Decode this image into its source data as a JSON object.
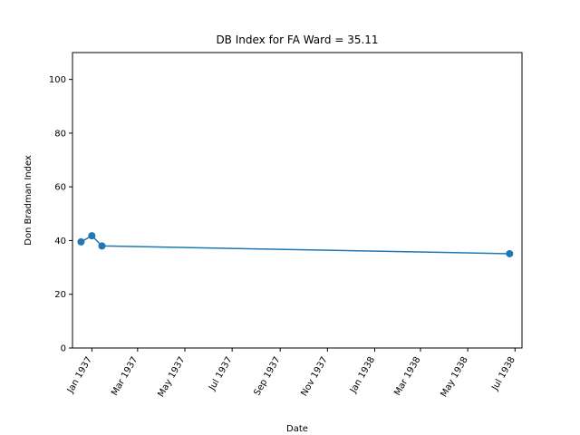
{
  "chart_data": {
    "type": "line",
    "title": "DB Index for FA Ward = 35.11",
    "xlabel": "Date",
    "ylabel": "Don Bradman Index",
    "ylim": [
      0,
      110
    ],
    "yticks": [
      0,
      20,
      40,
      60,
      80,
      100
    ],
    "xlim": [
      "1936-12-07",
      "1938-07-10"
    ],
    "xticks": [
      {
        "date": "1937-01-01",
        "label": "Jan 1937"
      },
      {
        "date": "1937-03-01",
        "label": "Mar 1937"
      },
      {
        "date": "1937-05-01",
        "label": "May 1937"
      },
      {
        "date": "1937-07-01",
        "label": "Jul 1937"
      },
      {
        "date": "1937-09-01",
        "label": "Sep 1937"
      },
      {
        "date": "1937-11-01",
        "label": "Nov 1937"
      },
      {
        "date": "1938-01-01",
        "label": "Jan 1938"
      },
      {
        "date": "1938-03-01",
        "label": "Mar 1938"
      },
      {
        "date": "1938-05-01",
        "label": "May 1938"
      },
      {
        "date": "1938-07-01",
        "label": "Jul 1938"
      }
    ],
    "grid": false,
    "series": [
      {
        "color": "#1f77b4",
        "points": [
          {
            "x": "1936-12-18",
            "y": 39.5
          },
          {
            "x": "1937-01-01",
            "y": 41.8
          },
          {
            "x": "1937-01-14",
            "y": 38.0
          },
          {
            "x": "1938-06-24",
            "y": 35.11
          }
        ]
      }
    ]
  }
}
